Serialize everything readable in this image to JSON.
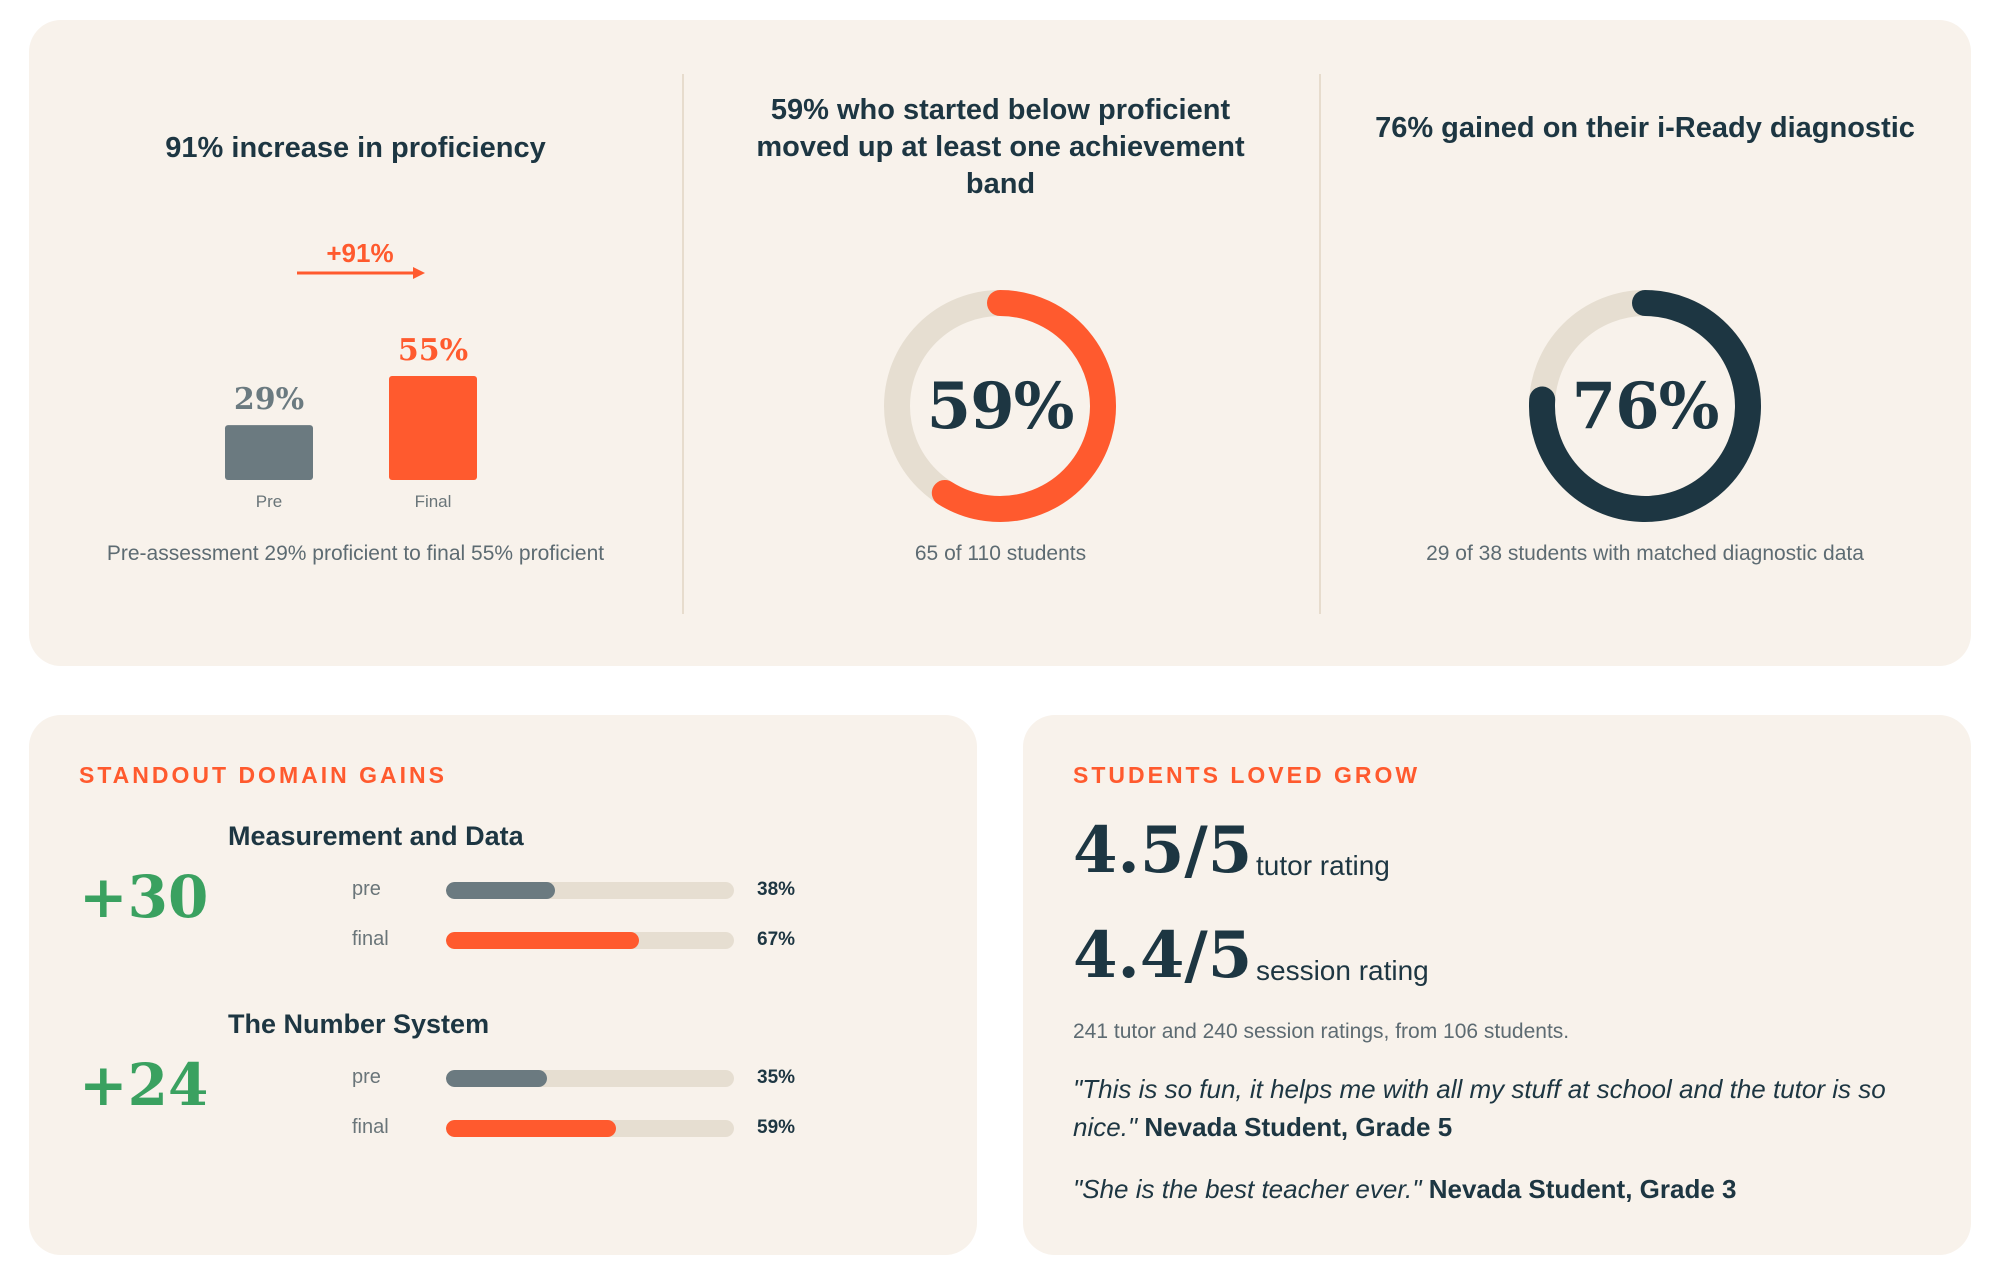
{
  "stats": {
    "proficiency": {
      "title": "91% increase in proficiency",
      "increase_label": "+91%",
      "caption": "Pre-assessment 29% proficient to final 55% proficient"
    },
    "achievement": {
      "title": "59% who started below proficient moved up at least one achievement band",
      "caption": "65 of 110 students"
    },
    "diagnostic": {
      "title": "76% gained on their i-Ready diagnostic",
      "caption": "29 of 38 students with matched diagnostic data"
    }
  },
  "chart_data": [
    {
      "type": "bar",
      "categories": [
        "Pre",
        "Final"
      ],
      "values": [
        29,
        55
      ],
      "value_labels": [
        "29%",
        "55%"
      ],
      "colors": [
        "#6b7a80",
        "#ff5a2e"
      ]
    },
    {
      "type": "pie",
      "variant": "donut",
      "value": 59,
      "center_label": "59%",
      "color": "#ff5a2e",
      "track_color": "#e6ded1"
    },
    {
      "type": "pie",
      "variant": "donut",
      "value": 76,
      "center_label": "76%",
      "color": "#1d3642",
      "track_color": "#e6ded1"
    },
    {
      "type": "bar",
      "orientation": "horizontal",
      "title": "Measurement and Data",
      "delta_label": "+30",
      "categories": [
        "pre",
        "final"
      ],
      "values": [
        38,
        67
      ],
      "value_labels": [
        "38%",
        "67%"
      ],
      "xlim": [
        0,
        100
      ],
      "colors": [
        "#6b7a80",
        "#ff5a2e"
      ]
    },
    {
      "type": "bar",
      "orientation": "horizontal",
      "title": "The Number System",
      "delta_label": "+24",
      "categories": [
        "pre",
        "final"
      ],
      "values": [
        35,
        59
      ],
      "value_labels": [
        "35%",
        "59%"
      ],
      "xlim": [
        0,
        100
      ],
      "colors": [
        "#6b7a80",
        "#ff5a2e"
      ]
    }
  ],
  "domains": {
    "heading": "STANDOUT DOMAIN GAINS"
  },
  "ratings": {
    "heading": "STUDENTS LOVED GROW",
    "items": [
      {
        "value": "4.5/5",
        "label": "tutor rating"
      },
      {
        "value": "4.4/5",
        "label": "session rating"
      }
    ],
    "note": "241 tutor and 240 session ratings, from 106 students.",
    "quotes": [
      {
        "text": "\"This is so fun, it helps me with all my stuff at school and the tutor is so nice.\"",
        "author": "Nevada Student, Grade 5"
      },
      {
        "text": "\"She is the best teacher ever.\"",
        "author": "Nevada Student, Grade 3"
      }
    ]
  },
  "colors": {
    "accent": "#ff5a2e",
    "navy": "#1d3642",
    "gray": "#6b7a80",
    "green": "#3aa160",
    "card": "#f8f2eb",
    "track": "#e6ded1"
  }
}
